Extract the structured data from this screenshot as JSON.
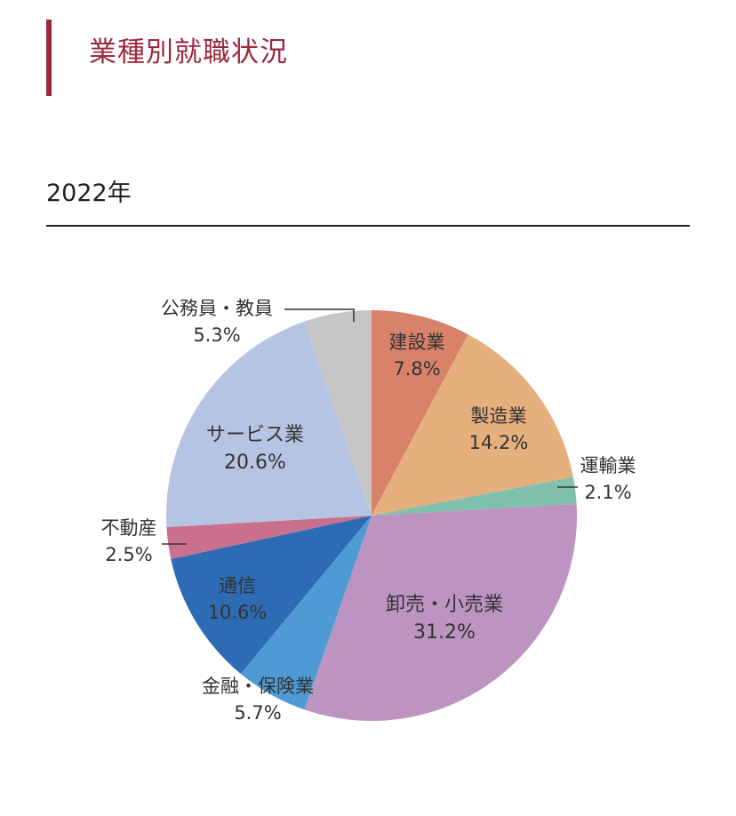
{
  "header": {
    "title": "業種別就職状況"
  },
  "section": {
    "year": "2022年"
  },
  "chart_data": {
    "type": "pie",
    "slices": [
      {
        "name": "建設業",
        "label": "7.8%",
        "value": 7.8,
        "color": "#d9826a"
      },
      {
        "name": "製造業",
        "label": "14.2%",
        "value": 14.2,
        "color": "#e6b07e"
      },
      {
        "name": "運輸業",
        "label": "2.1%",
        "value": 2.1,
        "color": "#7fc1ac"
      },
      {
        "name": "卸売・小売業",
        "label": "31.2%",
        "value": 31.2,
        "color": "#bd94c1"
      },
      {
        "name": "金融・保険業",
        "label": "5.7%",
        "value": 5.7,
        "color": "#4e9ad4"
      },
      {
        "name": "通信",
        "label": "10.6%",
        "value": 10.6,
        "color": "#2e6bb5"
      },
      {
        "name": "不動産",
        "label": "2.5%",
        "value": 2.5,
        "color": "#c8708c"
      },
      {
        "name": "サービス業",
        "label": "20.6%",
        "value": 20.6,
        "color": "#b6c4e3"
      },
      {
        "name": "公務員・教員",
        "label": "5.3%",
        "value": 5.3,
        "color": "#c6c6c6"
      }
    ]
  }
}
